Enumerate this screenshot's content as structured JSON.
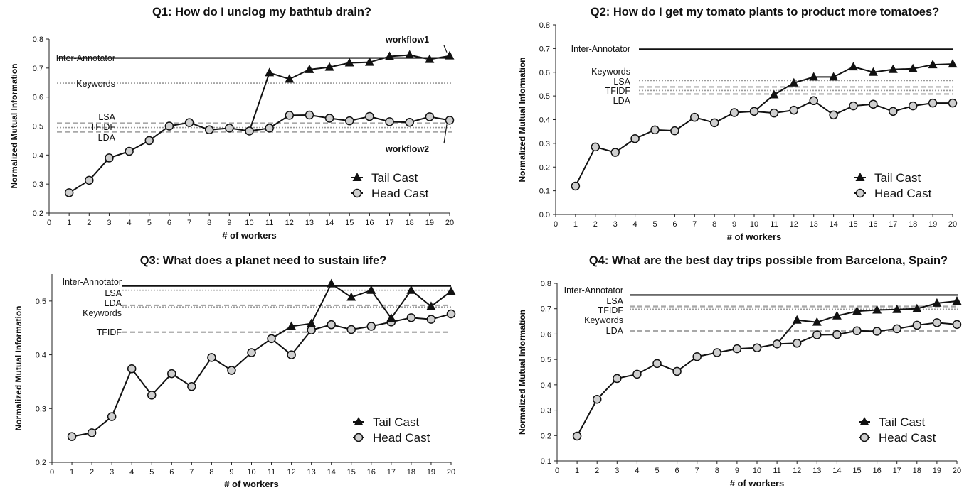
{
  "chart_data": [
    {
      "type": "line",
      "title": "Q1: How do I unclog my bathtub drain?",
      "xlabel": "# of workers",
      "ylabel": "Normalized Mutual Information",
      "xlim": [
        0,
        20
      ],
      "ylim": [
        0.2,
        0.8
      ],
      "xticks": [
        "0",
        "1",
        "2",
        "3",
        "4",
        "5",
        "6",
        "7",
        "8",
        "9",
        "10",
        "11",
        "12",
        "13",
        "14",
        "15",
        "16",
        "17",
        "18",
        "19",
        "20"
      ],
      "yticks": [
        "0.2",
        "0.3",
        "0.4",
        "0.5",
        "0.6",
        "0.7",
        "0.8"
      ],
      "grid": false,
      "legend_position": "bottom-right",
      "series": [
        {
          "name": "Tail Cast",
          "marker": "triangle",
          "x": [
            11,
            12,
            13,
            14,
            15,
            16,
            17,
            18,
            19,
            20
          ],
          "y": [
            0.684,
            0.662,
            0.695,
            0.703,
            0.718,
            0.72,
            0.74,
            0.745,
            0.73,
            0.742
          ]
        },
        {
          "name": "Head Cast",
          "marker": "circle",
          "x": [
            1,
            2,
            3,
            4,
            5,
            6,
            7,
            8,
            9,
            10,
            11,
            12,
            13,
            14,
            15,
            16,
            17,
            18,
            19,
            20
          ],
          "y": [
            0.27,
            0.313,
            0.39,
            0.413,
            0.45,
            0.5,
            0.512,
            0.487,
            0.493,
            0.483,
            0.493,
            0.537,
            0.538,
            0.527,
            0.518,
            0.533,
            0.515,
            0.513,
            0.532,
            0.52
          ]
        }
      ],
      "reference_lines": [
        {
          "label": "Inter-Annotator",
          "y": 0.735,
          "style": "solid"
        },
        {
          "label": "Keywords",
          "y": 0.648,
          "style": "dotted"
        },
        {
          "label": "LSA",
          "y": 0.51,
          "style": "dashed"
        },
        {
          "label": "TFIDF",
          "y": 0.495,
          "style": "dotted"
        },
        {
          "label": "LDA",
          "y": 0.48,
          "style": "dashed"
        }
      ],
      "annotations": [
        {
          "text": "workflow1",
          "x": 20,
          "y": 0.742
        },
        {
          "text": "workflow2",
          "x": 20,
          "y": 0.52
        }
      ],
      "branch_from": {
        "x": 10,
        "y": 0.483
      }
    },
    {
      "type": "line",
      "title": "Q2: How do I get my tomato plants to product more tomatoes?",
      "xlabel": "# of workers",
      "ylabel": "Normalized Mutual Information",
      "xlim": [
        0,
        20
      ],
      "ylim": [
        0.0,
        0.8
      ],
      "xticks": [
        "0",
        "1",
        "2",
        "3",
        "4",
        "5",
        "6",
        "7",
        "8",
        "9",
        "10",
        "11",
        "12",
        "13",
        "14",
        "15",
        "16",
        "17",
        "18",
        "19",
        "20"
      ],
      "yticks": [
        "0.0",
        "0.1",
        "0.2",
        "0.3",
        "0.4",
        "0.5",
        "0.6",
        "0.7",
        "0.8"
      ],
      "grid": false,
      "legend_position": "bottom-right",
      "series": [
        {
          "name": "Tail Cast",
          "marker": "triangle",
          "x": [
            11,
            12,
            13,
            14,
            15,
            16,
            17,
            18,
            19,
            20
          ],
          "y": [
            0.505,
            0.555,
            0.58,
            0.58,
            0.623,
            0.6,
            0.612,
            0.615,
            0.632,
            0.635
          ]
        },
        {
          "name": "Head Cast",
          "marker": "circle",
          "x": [
            1,
            2,
            3,
            4,
            5,
            6,
            7,
            8,
            9,
            10,
            11,
            12,
            13,
            14,
            15,
            16,
            17,
            18,
            19,
            20
          ],
          "y": [
            0.12,
            0.285,
            0.262,
            0.32,
            0.357,
            0.353,
            0.41,
            0.387,
            0.43,
            0.435,
            0.428,
            0.44,
            0.48,
            0.42,
            0.458,
            0.465,
            0.435,
            0.458,
            0.47,
            0.47
          ]
        }
      ],
      "reference_lines": [
        {
          "label": "Inter-Annotator",
          "y": 0.697,
          "style": "solid"
        },
        {
          "label": "Keywords",
          "y": 0.565,
          "style": "dotted"
        },
        {
          "label": "LSA",
          "y": 0.538,
          "style": "dashed"
        },
        {
          "label": "TFIDF",
          "y": 0.523,
          "style": "dotted"
        },
        {
          "label": "LDA",
          "y": 0.508,
          "style": "dashed"
        }
      ],
      "branch_from": {
        "x": 10,
        "y": 0.435
      }
    },
    {
      "type": "line",
      "title": "Q3: What does a planet need to sustain life?",
      "xlabel": "# of workers",
      "ylabel": "Normalized Mutual Information",
      "xlim": [
        0,
        20
      ],
      "ylim": [
        0.2,
        0.55
      ],
      "xticks": [
        "0",
        "1",
        "2",
        "3",
        "4",
        "5",
        "6",
        "7",
        "8",
        "9",
        "10",
        "11",
        "12",
        "13",
        "14",
        "15",
        "16",
        "17",
        "18",
        "19",
        "20"
      ],
      "yticks": [
        "0.2",
        "0.3",
        "0.4",
        "0.5"
      ],
      "grid": false,
      "legend_position": "bottom-right",
      "series": [
        {
          "name": "Tail Cast",
          "marker": "triangle",
          "x": [
            12,
            13,
            14,
            15,
            16,
            17,
            18,
            19,
            20
          ],
          "y": [
            0.453,
            0.458,
            0.532,
            0.507,
            0.52,
            0.468,
            0.52,
            0.49,
            0.518
          ]
        },
        {
          "name": "Head Cast",
          "marker": "circle",
          "x": [
            1,
            2,
            3,
            4,
            5,
            6,
            7,
            8,
            9,
            10,
            11,
            12,
            13,
            14,
            15,
            16,
            17,
            18,
            19,
            20
          ],
          "y": [
            0.248,
            0.255,
            0.285,
            0.374,
            0.325,
            0.365,
            0.341,
            0.395,
            0.371,
            0.404,
            0.43,
            0.4,
            0.446,
            0.456,
            0.447,
            0.453,
            0.461,
            0.469,
            0.466,
            0.476
          ]
        }
      ],
      "reference_lines": [
        {
          "label": "Inter-Annotator",
          "y": 0.528,
          "style": "solid"
        },
        {
          "label": "LSA",
          "y": 0.52,
          "style": "dotted"
        },
        {
          "label": "LDA",
          "y": 0.492,
          "style": "dashed"
        },
        {
          "label": "Keywords",
          "y": 0.489,
          "style": "dotted"
        },
        {
          "label": "TFIDF",
          "y": 0.442,
          "style": "dashed"
        }
      ],
      "branch_from": {
        "x": 11,
        "y": 0.43
      }
    },
    {
      "type": "line",
      "title": "Q4: What are the best day trips possible from Barcelona, Spain?",
      "xlabel": "# of workers",
      "ylabel": "Normalized Mutual Information",
      "xlim": [
        0,
        20
      ],
      "ylim": [
        0.1,
        0.8
      ],
      "xticks": [
        "0",
        "1",
        "2",
        "3",
        "4",
        "5",
        "6",
        "7",
        "8",
        "9",
        "10",
        "11",
        "12",
        "13",
        "14",
        "15",
        "16",
        "17",
        "18",
        "19",
        "20"
      ],
      "yticks": [
        "0.1",
        "0.2",
        "0.3",
        "0.4",
        "0.5",
        "0.6",
        "0.7",
        "0.8"
      ],
      "grid": false,
      "legend_position": "bottom-right",
      "series": [
        {
          "name": "Tail Cast",
          "marker": "triangle",
          "x": [
            12,
            13,
            14,
            15,
            16,
            17,
            18,
            19,
            20
          ],
          "y": [
            0.655,
            0.647,
            0.672,
            0.69,
            0.695,
            0.697,
            0.7,
            0.722,
            0.73
          ]
        },
        {
          "name": "Head Cast",
          "marker": "circle",
          "x": [
            1,
            2,
            3,
            4,
            5,
            6,
            7,
            8,
            9,
            10,
            11,
            12,
            13,
            14,
            15,
            16,
            17,
            18,
            19,
            20
          ],
          "y": [
            0.198,
            0.343,
            0.425,
            0.442,
            0.484,
            0.453,
            0.511,
            0.527,
            0.542,
            0.546,
            0.561,
            0.564,
            0.597,
            0.598,
            0.613,
            0.611,
            0.621,
            0.635,
            0.645,
            0.638
          ]
        }
      ],
      "reference_lines": [
        {
          "label": "Inter-Annotator",
          "y": 0.754,
          "style": "solid"
        },
        {
          "label": "LSA",
          "y": 0.709,
          "style": "dashed"
        },
        {
          "label": "TFIDF",
          "y": 0.703,
          "style": "dotted"
        },
        {
          "label": "Keywords",
          "y": 0.697,
          "style": "dotted"
        },
        {
          "label": "LDA",
          "y": 0.612,
          "style": "dashed"
        }
      ],
      "branch_from": {
        "x": 11,
        "y": 0.561
      }
    }
  ]
}
